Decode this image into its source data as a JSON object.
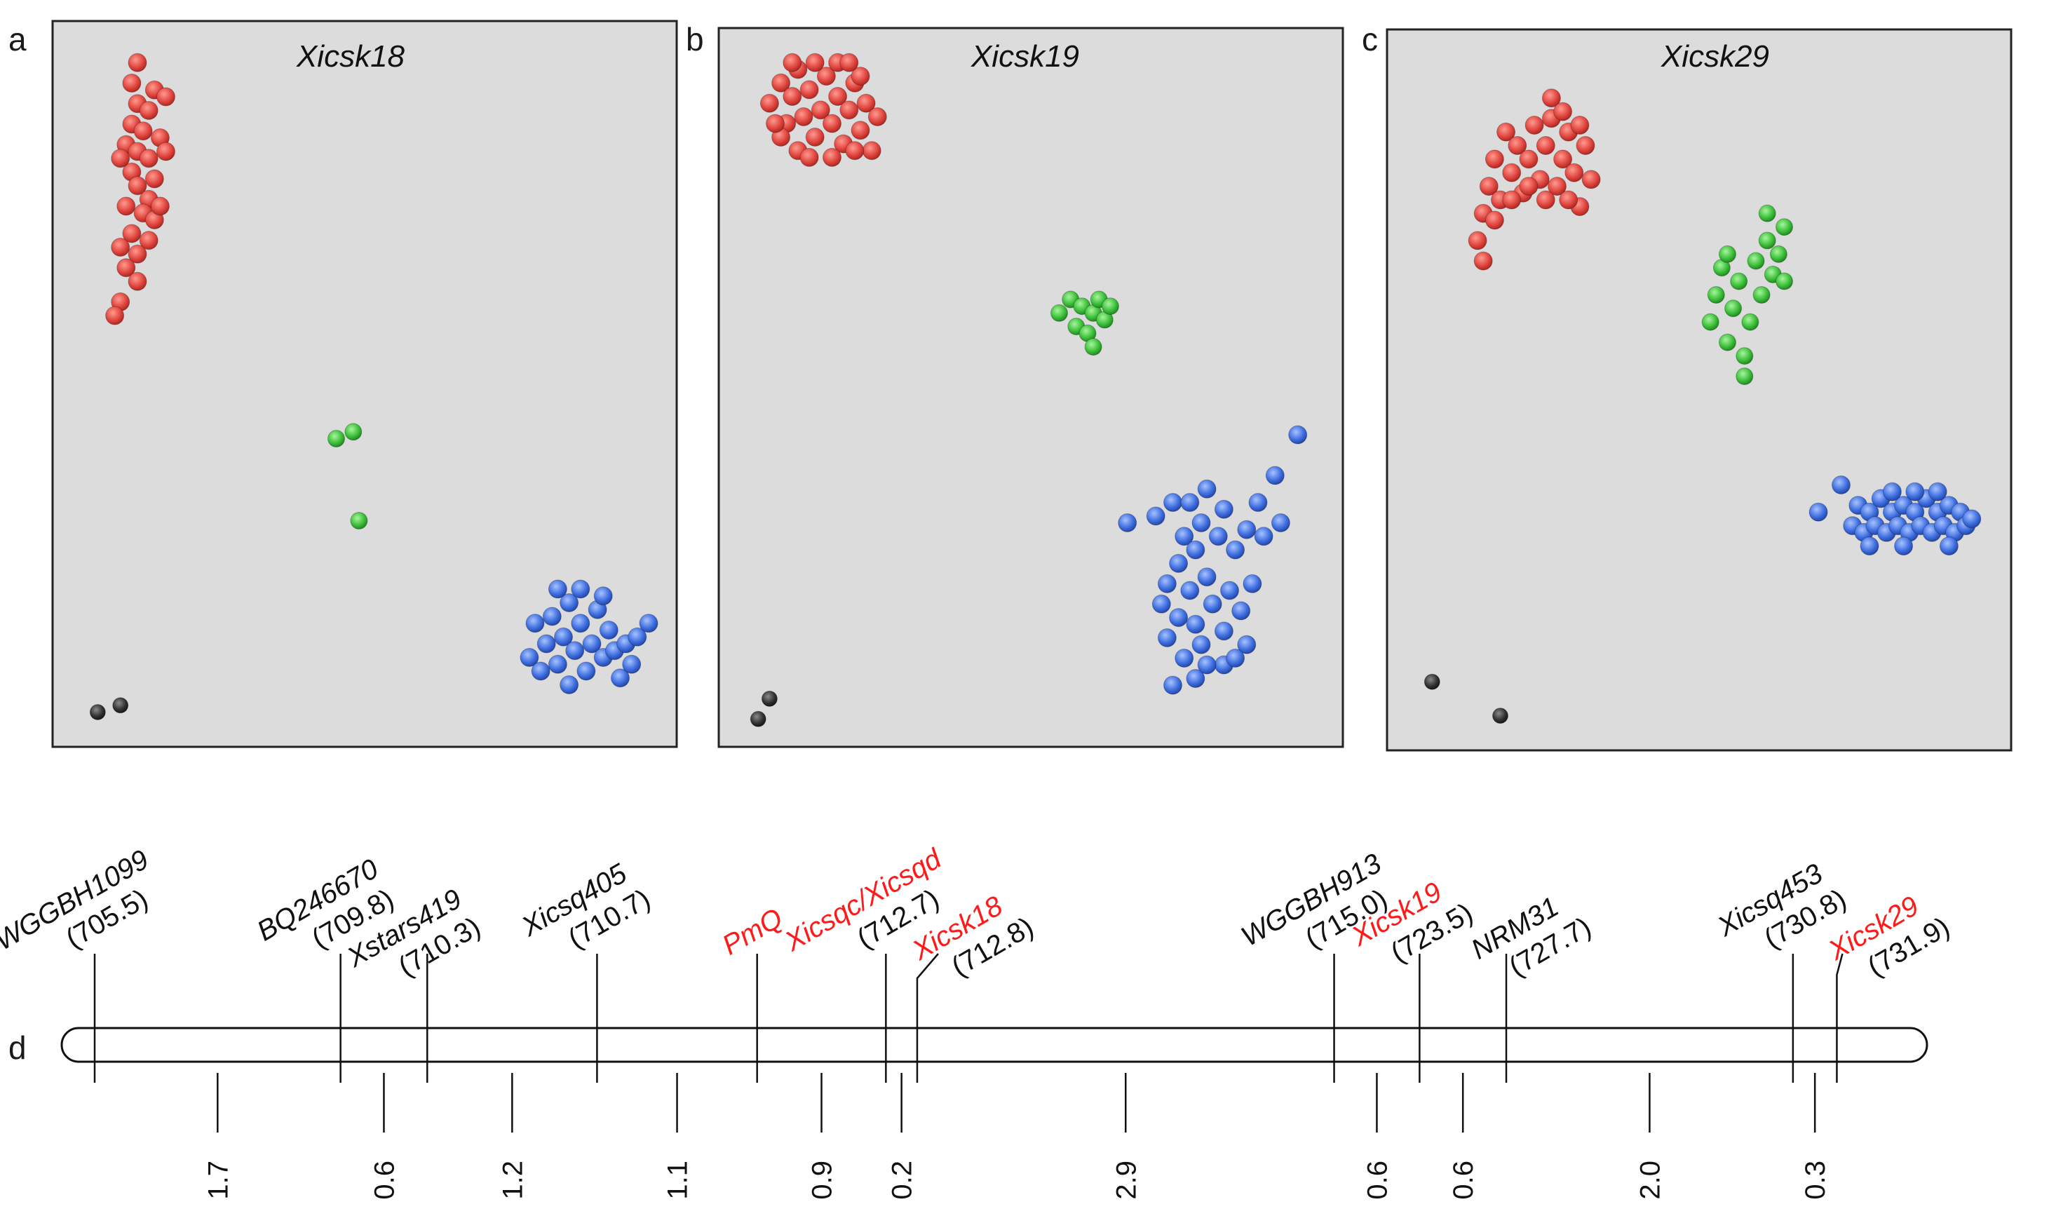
{
  "chart_data": [
    {
      "type": "scatter",
      "panel": "a",
      "title": "Xicsk18",
      "clusters": [
        {
          "color": "red",
          "points": [
            [
              0.1,
              0.97
            ],
            [
              0.09,
              0.94
            ],
            [
              0.13,
              0.93
            ],
            [
              0.1,
              0.91
            ],
            [
              0.12,
              0.9
            ],
            [
              0.09,
              0.88
            ],
            [
              0.11,
              0.87
            ],
            [
              0.14,
              0.86
            ],
            [
              0.08,
              0.85
            ],
            [
              0.1,
              0.84
            ],
            [
              0.12,
              0.83
            ],
            [
              0.09,
              0.81
            ],
            [
              0.13,
              0.8
            ],
            [
              0.1,
              0.79
            ],
            [
              0.12,
              0.77
            ],
            [
              0.08,
              0.76
            ],
            [
              0.11,
              0.75
            ],
            [
              0.13,
              0.74
            ],
            [
              0.09,
              0.72
            ],
            [
              0.12,
              0.71
            ],
            [
              0.1,
              0.69
            ],
            [
              0.08,
              0.67
            ],
            [
              0.1,
              0.65
            ],
            [
              0.07,
              0.62
            ],
            [
              0.06,
              0.6
            ],
            [
              0.15,
              0.92
            ],
            [
              0.15,
              0.84
            ],
            [
              0.07,
              0.83
            ],
            [
              0.14,
              0.76
            ],
            [
              0.07,
              0.7
            ]
          ]
        },
        {
          "color": "green",
          "points": [
            [
              0.45,
              0.42
            ],
            [
              0.48,
              0.43
            ],
            [
              0.49,
              0.3
            ]
          ]
        },
        {
          "color": "blue",
          "points": [
            [
              0.79,
              0.1
            ],
            [
              0.8,
              0.15
            ],
            [
              0.82,
              0.12
            ],
            [
              0.83,
              0.16
            ],
            [
              0.84,
              0.09
            ],
            [
              0.85,
              0.13
            ],
            [
              0.86,
              0.18
            ],
            [
              0.87,
              0.11
            ],
            [
              0.88,
              0.15
            ],
            [
              0.89,
              0.08
            ],
            [
              0.9,
              0.12
            ],
            [
              0.91,
              0.17
            ],
            [
              0.92,
              0.1
            ],
            [
              0.93,
              0.14
            ],
            [
              0.94,
              0.11
            ],
            [
              0.95,
              0.07
            ],
            [
              0.96,
              0.12
            ],
            [
              0.97,
              0.09
            ],
            [
              0.98,
              0.13
            ],
            [
              1.0,
              0.15
            ],
            [
              0.81,
              0.08
            ],
            [
              0.84,
              0.2
            ],
            [
              0.88,
              0.2
            ],
            [
              0.92,
              0.19
            ],
            [
              0.86,
              0.06
            ]
          ]
        },
        {
          "color": "black",
          "points": [
            [
              0.03,
              0.02
            ],
            [
              0.07,
              0.03
            ]
          ]
        }
      ]
    },
    {
      "type": "scatter",
      "panel": "b",
      "title": "Xicsk19",
      "clusters": [
        {
          "color": "red",
          "points": [
            [
              0.04,
              0.92
            ],
            [
              0.06,
              0.95
            ],
            [
              0.07,
              0.89
            ],
            [
              0.08,
              0.93
            ],
            [
              0.09,
              0.97
            ],
            [
              0.1,
              0.9
            ],
            [
              0.11,
              0.94
            ],
            [
              0.12,
              0.87
            ],
            [
              0.13,
              0.91
            ],
            [
              0.14,
              0.96
            ],
            [
              0.15,
              0.89
            ],
            [
              0.16,
              0.93
            ],
            [
              0.17,
              0.86
            ],
            [
              0.18,
              0.91
            ],
            [
              0.19,
              0.95
            ],
            [
              0.2,
              0.88
            ],
            [
              0.21,
              0.92
            ],
            [
              0.22,
              0.85
            ],
            [
              0.06,
              0.87
            ],
            [
              0.09,
              0.85
            ],
            [
              0.12,
              0.98
            ],
            [
              0.16,
              0.98
            ],
            [
              0.2,
              0.96
            ],
            [
              0.23,
              0.9
            ],
            [
              0.05,
              0.89
            ],
            [
              0.11,
              0.84
            ],
            [
              0.15,
              0.84
            ],
            [
              0.19,
              0.85
            ],
            [
              0.18,
              0.98
            ],
            [
              0.08,
              0.98
            ]
          ]
        },
        {
          "color": "green",
          "points": [
            [
              0.55,
              0.61
            ],
            [
              0.57,
              0.63
            ],
            [
              0.58,
              0.59
            ],
            [
              0.59,
              0.62
            ],
            [
              0.6,
              0.58
            ],
            [
              0.61,
              0.61
            ],
            [
              0.62,
              0.63
            ],
            [
              0.63,
              0.6
            ],
            [
              0.64,
              0.62
            ],
            [
              0.61,
              0.56
            ]
          ]
        },
        {
          "color": "blue",
          "points": [
            [
              0.67,
              0.3
            ],
            [
              0.72,
              0.31
            ],
            [
              0.73,
              0.18
            ],
            [
              0.74,
              0.21
            ],
            [
              0.74,
              0.13
            ],
            [
              0.75,
              0.33
            ],
            [
              0.76,
              0.16
            ],
            [
              0.76,
              0.24
            ],
            [
              0.77,
              0.1
            ],
            [
              0.77,
              0.28
            ],
            [
              0.78,
              0.2
            ],
            [
              0.78,
              0.33
            ],
            [
              0.79,
              0.15
            ],
            [
              0.79,
              0.26
            ],
            [
              0.8,
              0.12
            ],
            [
              0.8,
              0.3
            ],
            [
              0.81,
              0.22
            ],
            [
              0.81,
              0.35
            ],
            [
              0.82,
              0.18
            ],
            [
              0.83,
              0.28
            ],
            [
              0.84,
              0.14
            ],
            [
              0.84,
              0.32
            ],
            [
              0.85,
              0.2
            ],
            [
              0.86,
              0.26
            ],
            [
              0.87,
              0.17
            ],
            [
              0.88,
              0.29
            ],
            [
              0.89,
              0.21
            ],
            [
              0.9,
              0.33
            ],
            [
              0.91,
              0.28
            ],
            [
              0.93,
              0.37
            ],
            [
              0.94,
              0.3
            ],
            [
              0.97,
              0.43
            ],
            [
              0.84,
              0.09
            ],
            [
              0.88,
              0.12
            ],
            [
              0.79,
              0.07
            ],
            [
              0.75,
              0.06
            ],
            [
              0.81,
              0.09
            ],
            [
              0.86,
              0.1
            ]
          ]
        },
        {
          "color": "black",
          "points": [
            [
              0.02,
              0.01
            ],
            [
              0.04,
              0.04
            ]
          ]
        }
      ]
    },
    {
      "type": "scatter",
      "panel": "c",
      "title": "Xicsk29",
      "clusters": [
        {
          "color": "red",
          "points": [
            [
              0.11,
              0.72
            ],
            [
              0.12,
              0.76
            ],
            [
              0.13,
              0.8
            ],
            [
              0.14,
              0.84
            ],
            [
              0.15,
              0.78
            ],
            [
              0.16,
              0.88
            ],
            [
              0.17,
              0.82
            ],
            [
              0.18,
              0.86
            ],
            [
              0.19,
              0.79
            ],
            [
              0.2,
              0.84
            ],
            [
              0.21,
              0.89
            ],
            [
              0.22,
              0.81
            ],
            [
              0.23,
              0.86
            ],
            [
              0.24,
              0.9
            ],
            [
              0.25,
              0.8
            ],
            [
              0.26,
              0.84
            ],
            [
              0.27,
              0.88
            ],
            [
              0.28,
              0.82
            ],
            [
              0.29,
              0.77
            ],
            [
              0.3,
              0.86
            ],
            [
              0.31,
              0.81
            ],
            [
              0.12,
              0.69
            ],
            [
              0.14,
              0.75
            ],
            [
              0.17,
              0.78
            ],
            [
              0.2,
              0.8
            ],
            [
              0.24,
              0.93
            ],
            [
              0.26,
              0.91
            ],
            [
              0.29,
              0.89
            ],
            [
              0.23,
              0.78
            ],
            [
              0.27,
              0.78
            ]
          ]
        },
        {
          "color": "green",
          "points": [
            [
              0.52,
              0.6
            ],
            [
              0.53,
              0.64
            ],
            [
              0.54,
              0.68
            ],
            [
              0.55,
              0.57
            ],
            [
              0.56,
              0.62
            ],
            [
              0.57,
              0.66
            ],
            [
              0.58,
              0.55
            ],
            [
              0.59,
              0.6
            ],
            [
              0.6,
              0.69
            ],
            [
              0.61,
              0.64
            ],
            [
              0.62,
              0.72
            ],
            [
              0.63,
              0.67
            ],
            [
              0.64,
              0.7
            ],
            [
              0.65,
              0.74
            ],
            [
              0.55,
              0.7
            ],
            [
              0.58,
              0.52
            ],
            [
              0.62,
              0.76
            ],
            [
              0.65,
              0.66
            ]
          ]
        },
        {
          "color": "blue",
          "points": [
            [
              0.71,
              0.32
            ],
            [
              0.75,
              0.36
            ],
            [
              0.77,
              0.3
            ],
            [
              0.78,
              0.33
            ],
            [
              0.79,
              0.29
            ],
            [
              0.8,
              0.32
            ],
            [
              0.81,
              0.3
            ],
            [
              0.82,
              0.34
            ],
            [
              0.83,
              0.29
            ],
            [
              0.84,
              0.32
            ],
            [
              0.85,
              0.3
            ],
            [
              0.86,
              0.33
            ],
            [
              0.87,
              0.29
            ],
            [
              0.88,
              0.32
            ],
            [
              0.89,
              0.3
            ],
            [
              0.9,
              0.34
            ],
            [
              0.91,
              0.29
            ],
            [
              0.92,
              0.32
            ],
            [
              0.93,
              0.3
            ],
            [
              0.94,
              0.33
            ],
            [
              0.95,
              0.29
            ],
            [
              0.96,
              0.32
            ],
            [
              0.97,
              0.3
            ],
            [
              0.98,
              0.31
            ],
            [
              0.84,
              0.35
            ],
            [
              0.88,
              0.35
            ],
            [
              0.92,
              0.35
            ],
            [
              0.8,
              0.27
            ],
            [
              0.86,
              0.27
            ],
            [
              0.94,
              0.27
            ]
          ]
        },
        {
          "color": "black",
          "points": [
            [
              0.03,
              0.07
            ],
            [
              0.15,
              0.02
            ]
          ]
        }
      ]
    },
    {
      "type": "genetic_map",
      "panel": "d",
      "markers": [
        {
          "name": "WGGBH1099",
          "pos": "(705.5)",
          "color": "black",
          "line": 0.0
        },
        {
          "name": "BQ246670",
          "pos": "(709.8)",
          "color": "black",
          "line": 0.1367
        },
        {
          "name": "Xstars419",
          "pos": "(710.3)",
          "color": "black",
          "line": 0.1849
        },
        {
          "name": "Xicsq405",
          "pos": "(710.7)",
          "color": "black",
          "line": 0.2793
        },
        {
          "name": "PmQ",
          "pos": "",
          "color": "red",
          "line": 0.3683
        },
        {
          "name": "Xicsqc/Xicsqd",
          "pos": "(712.7)",
          "color": "red",
          "line": 0.4399
        },
        {
          "name": "Xicsk18",
          "pos": "(712.8)",
          "color": "red",
          "line": 0.4573
        },
        {
          "name": "WGGBH913",
          "pos": "(715.0)",
          "color": "black",
          "line": 0.6891
        },
        {
          "name": "Xicsk19",
          "pos": "(723.5)",
          "color": "red",
          "line": 0.7366
        },
        {
          "name": "NRM31",
          "pos": "(727.7)",
          "color": "black",
          "line": 0.7848
        },
        {
          "name": "Xicsq453",
          "pos": "(730.8)",
          "color": "black",
          "line": 0.9442
        },
        {
          "name": "Xicsk29",
          "pos": "(731.9)",
          "color": "red",
          "line": 0.9686
        }
      ],
      "intervals": [
        "1.7",
        "0.6",
        "1.2",
        "1.1",
        "0.9",
        "0.2",
        "2.9",
        "0.6",
        "0.6",
        "2.0",
        "0.3"
      ]
    }
  ],
  "panel_labels": {
    "a": "a",
    "b": "b",
    "c": "c",
    "d": "d"
  },
  "colors": {
    "red": "#e0463f",
    "green": "#3cc03a",
    "blue": "#3f6fe0",
    "black": "#333333",
    "panel_bg": "#dcdcdc",
    "marker_red": "#ff1a1a"
  }
}
